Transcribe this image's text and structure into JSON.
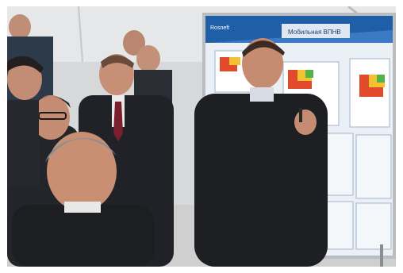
{
  "poster": {
    "brand": "Rosneft",
    "title": "Мобильная ВПНВ"
  },
  "colors": {
    "poster_header": "#1f5fa8",
    "poster_body": "#e9eff5",
    "tent_background": "#d9dadb",
    "jacket_dark": "#1f1f22",
    "skin": "#c79278"
  }
}
